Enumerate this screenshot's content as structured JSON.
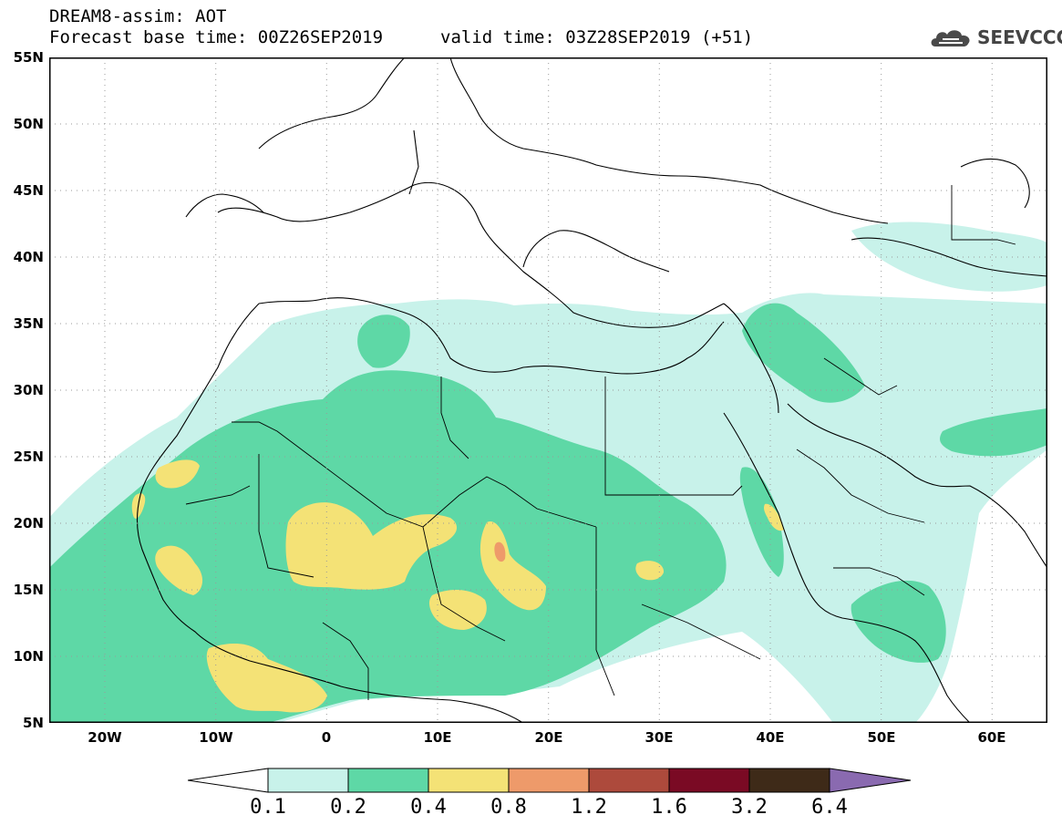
{
  "header": {
    "title": "DREAM8-assim: AOT",
    "forecast_base": "Forecast base time: 00Z26SEP2019",
    "valid_time": "valid time: 03Z28SEP2019 (+51)"
  },
  "logo": {
    "text": "SEEVCCC",
    "icon": "cloud-icon"
  },
  "map": {
    "lat_labels": [
      "55N",
      "50N",
      "45N",
      "40N",
      "35N",
      "30N",
      "25N",
      "20N",
      "15N",
      "10N",
      "5N"
    ],
    "lon_labels": [
      "20W",
      "10W",
      "0",
      "10E",
      "20E",
      "30E",
      "40E",
      "50E",
      "60E"
    ],
    "lat_range": [
      5,
      55
    ],
    "lon_range": [
      -25,
      65
    ],
    "grid": "dotted"
  },
  "legend": {
    "labels": [
      "0.1",
      "0.2",
      "0.4",
      "0.8",
      "1.2",
      "1.6",
      "3.2",
      "6.4"
    ],
    "colors": [
      "#ffffff",
      "#c8f2ea",
      "#5ed8a6",
      "#f4e276",
      "#ee9a6a",
      "#ad4a3c",
      "#7a0a24",
      "#3e2a18",
      "#8a6ab0"
    ]
  }
}
